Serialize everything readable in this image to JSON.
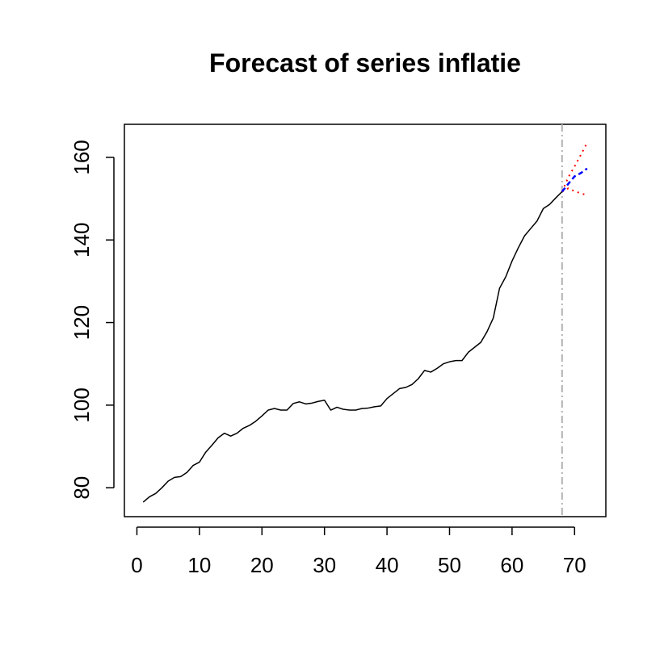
{
  "chart_data": {
    "type": "line",
    "title": "Forecast of series inflatie",
    "xlabel": "",
    "ylabel": "",
    "xlim": [
      -2,
      75
    ],
    "ylim": [
      73,
      168
    ],
    "x_ticks": [
      0,
      10,
      20,
      30,
      40,
      50,
      60,
      70
    ],
    "y_ticks": [
      80,
      100,
      120,
      140,
      160
    ],
    "x_tick_labels": [
      "0",
      "10",
      "20",
      "30",
      "40",
      "50",
      "60",
      "70"
    ],
    "y_tick_labels": [
      "80",
      "100",
      "120",
      "140",
      "160"
    ],
    "grid": false,
    "legend": "none",
    "forecast_origin": 68,
    "series": [
      {
        "role": "observed",
        "color": "#000000",
        "line_style": "solid",
        "x": [
          1,
          2,
          3,
          4,
          5,
          6,
          7,
          8,
          9,
          10,
          11,
          12,
          13,
          14,
          15,
          16,
          17,
          18,
          19,
          20,
          21,
          22,
          23,
          24,
          25,
          26,
          27,
          28,
          29,
          30,
          31,
          32,
          33,
          34,
          35,
          36,
          37,
          38,
          39,
          40,
          41,
          42,
          43,
          44,
          45,
          46,
          47,
          48,
          49,
          50,
          51,
          52,
          53,
          54,
          55,
          56,
          57,
          58,
          59,
          60,
          61,
          62,
          63,
          64,
          65,
          66,
          67,
          68
        ],
        "y": [
          76.5,
          77.8,
          78.6,
          80.0,
          81.6,
          82.5,
          82.7,
          83.7,
          85.4,
          86.2,
          88.6,
          90.3,
          92.1,
          93.2,
          92.5,
          93.2,
          94.4,
          95.1,
          96.1,
          97.4,
          98.8,
          99.2,
          98.8,
          98.8,
          100.4,
          100.8,
          100.3,
          100.5,
          100.9,
          101.2,
          98.8,
          99.5,
          99.0,
          98.8,
          98.8,
          99.2,
          99.3,
          99.6,
          99.8,
          101.6,
          102.8,
          104.0,
          104.3,
          105.0,
          106.4,
          108.4,
          108.0,
          108.9,
          110.0,
          110.5,
          110.8,
          110.8,
          112.8,
          114.0,
          115.2,
          117.8,
          121.1,
          128.3,
          131.1,
          134.9,
          138.1,
          141.0,
          142.8,
          144.6,
          147.6,
          148.6,
          150.2,
          151.7
        ]
      },
      {
        "role": "point_forecast",
        "color": "#0000ff",
        "line_style": "dashed",
        "x": [
          68,
          69,
          70,
          71,
          72
        ],
        "y": [
          151.7,
          153.6,
          155.4,
          156.2,
          157.3
        ]
      },
      {
        "role": "upper_interval",
        "color": "#ff0000",
        "line_style": "dotted",
        "x": [
          68,
          69,
          70,
          71,
          72
        ],
        "y": [
          151.7,
          155.2,
          157.8,
          160.6,
          163.5
        ]
      },
      {
        "role": "lower_interval",
        "color": "#ff0000",
        "line_style": "dotted",
        "x": [
          68,
          69,
          70,
          71,
          72
        ],
        "y": [
          151.7,
          152.5,
          151.8,
          151.3,
          150.8
        ]
      }
    ],
    "vline_color": "#b3b3b3"
  }
}
